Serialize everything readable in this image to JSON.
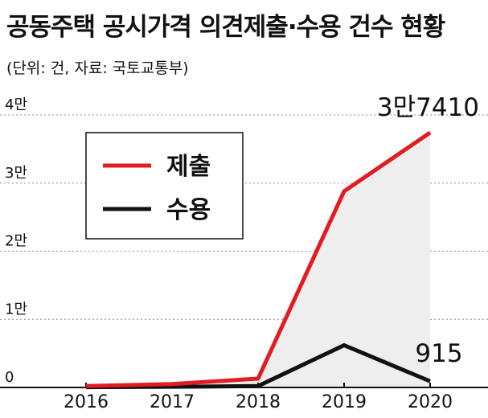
{
  "header": {
    "title": "공동주택 공시가격 의견제출·수용 건수 현황",
    "subtitle": "(단위: 건, 자료: 국토교통부)"
  },
  "colors": {
    "submission": "#e31b23",
    "acceptance": "#111111",
    "area_fill": "#eeeeee",
    "grid": "#8f8f8f"
  },
  "chart_data": {
    "type": "line",
    "title": "공동주택 공시가격 의견제출·수용 건수 현황",
    "subtitle": "(단위: 건, 자료: 국토교통부)",
    "x": [
      "2016",
      "2017",
      "2018",
      "2019",
      "2020"
    ],
    "ylim": [
      0,
      40000
    ],
    "y_ticks": [
      0,
      10000,
      20000,
      30000,
      40000
    ],
    "y_tick_labels": [
      "0",
      "1만",
      "2만",
      "3만",
      "4만"
    ],
    "grid": true,
    "legend_position": "top-left",
    "series": [
      {
        "name": "제출",
        "values": [
          200,
          500,
          1300,
          28800,
          37410
        ]
      },
      {
        "name": "수용",
        "values": [
          50,
          100,
          200,
          6200,
          915
        ]
      }
    ],
    "annotations": [
      {
        "label": "3만7410",
        "x": "2020",
        "series": "제출"
      },
      {
        "label": "915",
        "x": "2020",
        "series": "수용"
      }
    ]
  }
}
